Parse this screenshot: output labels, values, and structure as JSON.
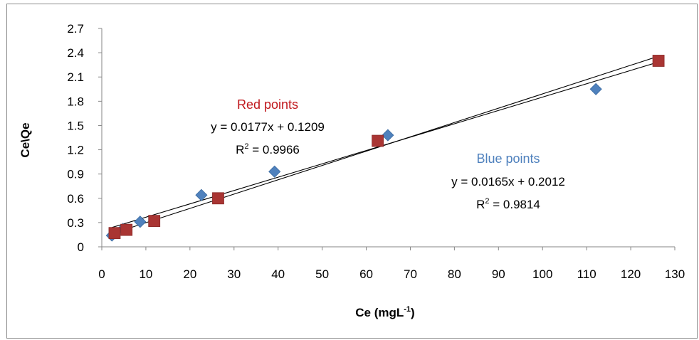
{
  "chart_data": {
    "type": "scatter",
    "title": "",
    "xlabel": "Ce (mgL",
    "xlabel_sup": "-1",
    "xlabel_suffix": ")",
    "ylabel": "Ce\\Qe",
    "xlim": [
      0,
      130
    ],
    "ylim": [
      0,
      2.7
    ],
    "x_ticks": [
      "0",
      "10",
      "20",
      "30",
      "40",
      "50",
      "60",
      "70",
      "80",
      "90",
      "100",
      "110",
      "120",
      "130"
    ],
    "y_ticks": [
      "0",
      "0.3",
      "0.6",
      "0.9",
      "1.2",
      "1.5",
      "1.8",
      "2.1",
      "2.4",
      "2.7"
    ],
    "grid": false,
    "series": [
      {
        "name": "Blue points",
        "marker": "diamond",
        "color": "#4f81bd",
        "x": [
          2.3,
          4.8,
          8.7,
          22.6,
          39.2,
          64.9,
          112.1
        ],
        "y": [
          0.14,
          0.22,
          0.31,
          0.64,
          0.93,
          1.38,
          1.95
        ],
        "trendline": {
          "slope": 0.0165,
          "intercept": 0.2012,
          "x_range": [
            2.3,
            126.3
          ]
        },
        "equation": "y = 0.0165x + 0.2012",
        "r2_label": "R",
        "r2_sup": "2",
        "r2_value": " = 0.9814"
      },
      {
        "name": "Red points",
        "marker": "square",
        "color": "#a93533",
        "x": [
          2.9,
          5.6,
          11.9,
          26.4,
          62.6,
          126.3
        ],
        "y": [
          0.17,
          0.21,
          0.32,
          0.6,
          1.31,
          2.3
        ],
        "trendline": {
          "slope": 0.0177,
          "intercept": 0.1209,
          "x_range": [
            2.3,
            126.3
          ]
        },
        "equation": "y = 0.0177x + 0.1209",
        "r2_label": "R",
        "r2_sup": "2",
        "r2_value": " = 0.9966"
      }
    ]
  }
}
